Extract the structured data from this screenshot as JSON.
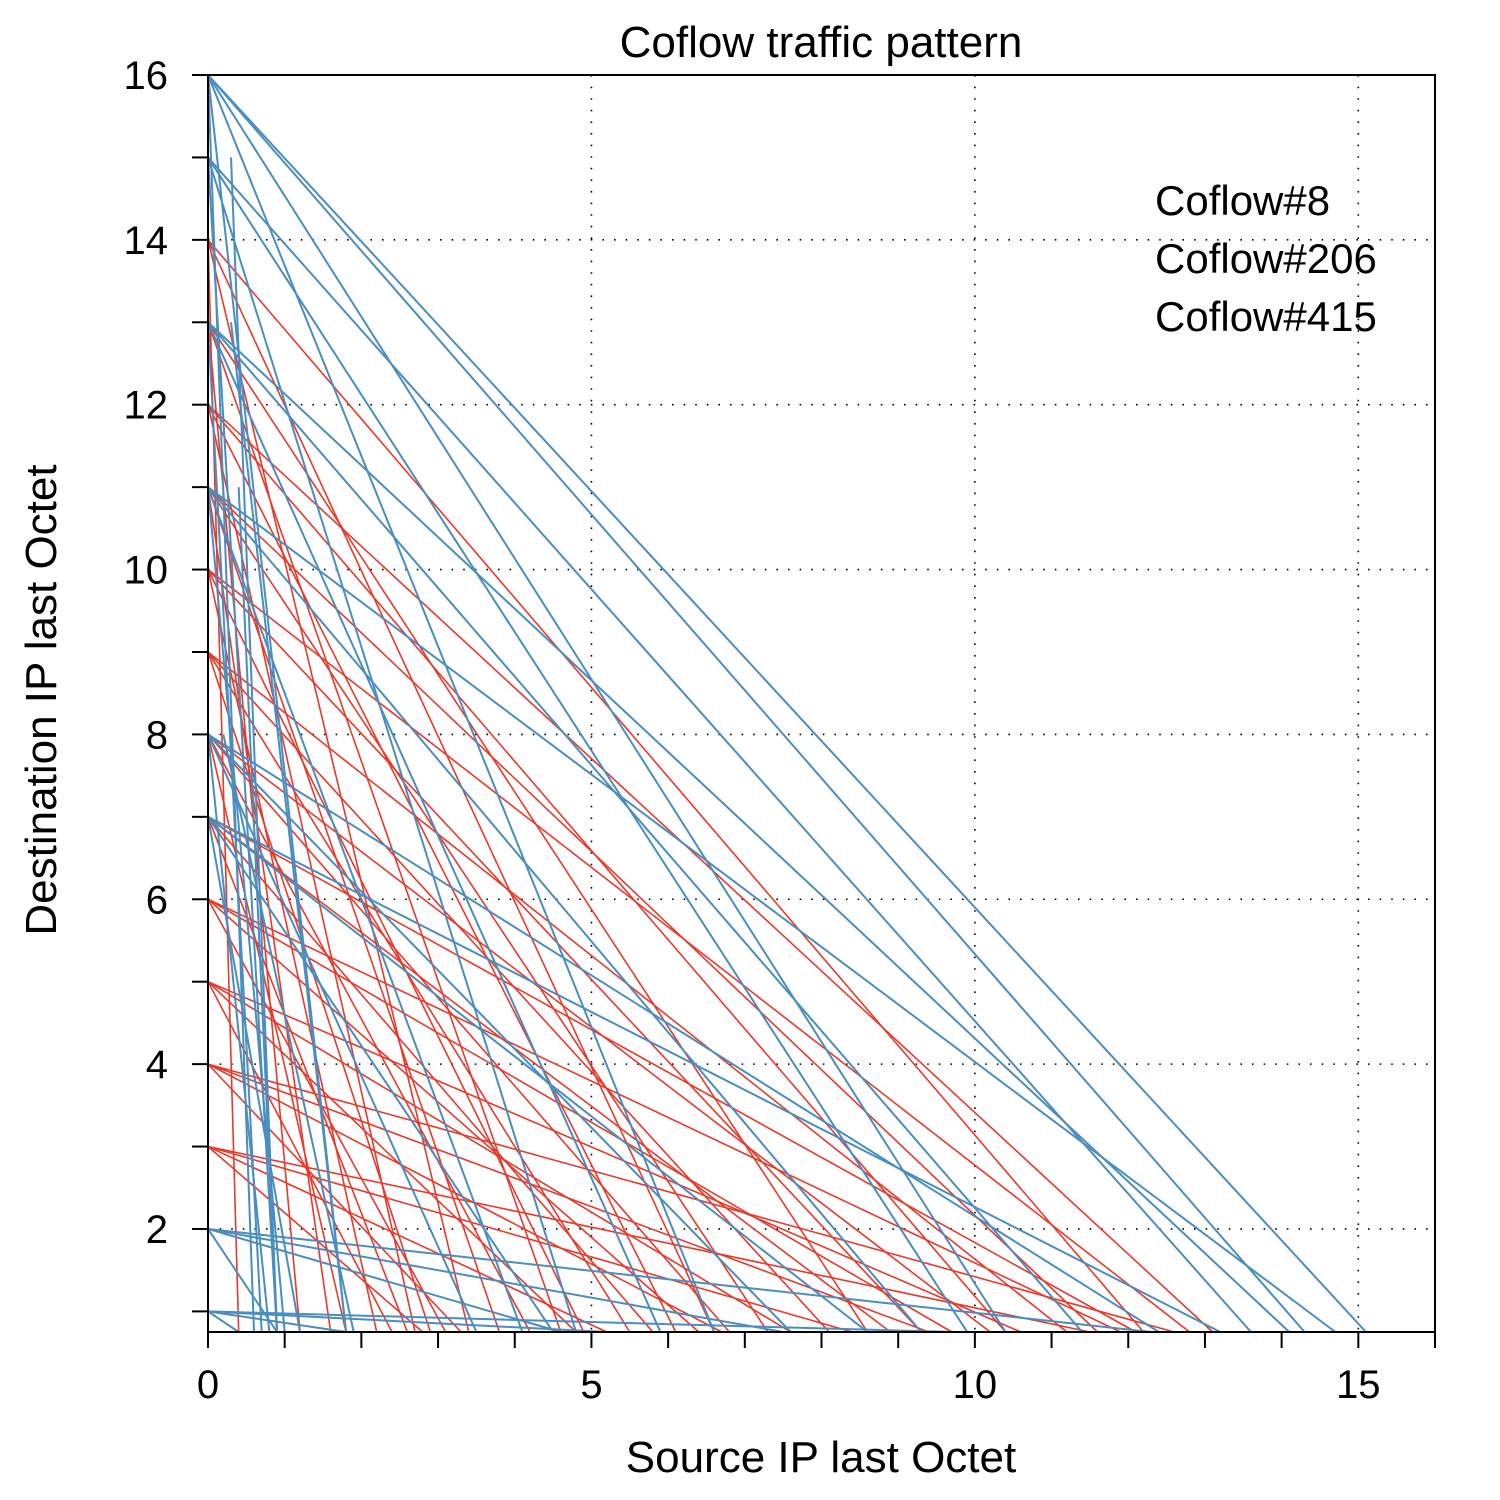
{
  "chart_data": {
    "type": "line",
    "title": "Coflow traffic pattern",
    "xlabel": "Source IP last Octet",
    "ylabel": "Destination IP last Octet",
    "xlim": [
      0,
      16
    ],
    "ylim": [
      0.75,
      16
    ],
    "x_ticks": [
      0,
      5,
      10,
      15
    ],
    "y_ticks": [
      2,
      4,
      6,
      8,
      10,
      12,
      14,
      16
    ],
    "grid": true,
    "legend_position": "top-right",
    "series": [
      {
        "name": "Coflow#8",
        "color": "#000000",
        "segments": []
      },
      {
        "name": "Coflow#206",
        "color": "#e8392b",
        "segments": [
          [
            [
              0,
              14
            ],
            [
              0.4,
              0.75
            ]
          ],
          [
            [
              0,
              14
            ],
            [
              3.4,
              0.75
            ]
          ],
          [
            [
              0,
              14
            ],
            [
              6.6,
              0.75
            ]
          ],
          [
            [
              0,
              14
            ],
            [
              12.2,
              0.75
            ]
          ],
          [
            [
              0,
              13
            ],
            [
              1.2,
              0.75
            ]
          ],
          [
            [
              0,
              13
            ],
            [
              4.6,
              0.75
            ]
          ],
          [
            [
              0,
              13
            ],
            [
              8.6,
              0.75
            ]
          ],
          [
            [
              0,
              12
            ],
            [
              2.7,
              0.75
            ]
          ],
          [
            [
              0,
              12
            ],
            [
              6.1,
              0.75
            ]
          ],
          [
            [
              0,
              12
            ],
            [
              10.4,
              0.75
            ]
          ],
          [
            [
              0,
              12
            ],
            [
              13.1,
              0.75
            ]
          ],
          [
            [
              0,
              11
            ],
            [
              1.6,
              0.75
            ]
          ],
          [
            [
              0,
              11
            ],
            [
              3.8,
              0.75
            ]
          ],
          [
            [
              0,
              11
            ],
            [
              7.3,
              0.75
            ]
          ],
          [
            [
              0,
              11
            ],
            [
              11.6,
              0.75
            ]
          ],
          [
            [
              0,
              10
            ],
            [
              2.2,
              0.75
            ]
          ],
          [
            [
              0,
              10
            ],
            [
              4.9,
              0.75
            ]
          ],
          [
            [
              0,
              10
            ],
            [
              9.3,
              0.75
            ]
          ],
          [
            [
              0,
              10
            ],
            [
              12.8,
              0.75
            ]
          ],
          [
            [
              0,
              9
            ],
            [
              2.9,
              0.75
            ]
          ],
          [
            [
              0,
              9
            ],
            [
              5.5,
              0.75
            ]
          ],
          [
            [
              0,
              9
            ],
            [
              8.1,
              0.75
            ]
          ],
          [
            [
              0,
              9
            ],
            [
              11.2,
              0.75
            ]
          ],
          [
            [
              0,
              8
            ],
            [
              1.8,
              0.75
            ]
          ],
          [
            [
              0,
              8
            ],
            [
              4.2,
              0.75
            ]
          ],
          [
            [
              0,
              8
            ],
            [
              6.8,
              0.75
            ]
          ],
          [
            [
              0,
              8
            ],
            [
              10.2,
              0.75
            ]
          ],
          [
            [
              0,
              7
            ],
            [
              2.6,
              0.75
            ]
          ],
          [
            [
              0,
              7
            ],
            [
              5.8,
              0.75
            ]
          ],
          [
            [
              0,
              7
            ],
            [
              8.9,
              0.75
            ]
          ],
          [
            [
              0,
              7
            ],
            [
              12.1,
              0.75
            ]
          ],
          [
            [
              0,
              6
            ],
            [
              3.1,
              0.75
            ]
          ],
          [
            [
              0,
              6
            ],
            [
              6.4,
              0.75
            ]
          ],
          [
            [
              0,
              6
            ],
            [
              9.7,
              0.75
            ]
          ],
          [
            [
              0,
              6
            ],
            [
              11.9,
              0.75
            ]
          ],
          [
            [
              0,
              5
            ],
            [
              2.4,
              0.75
            ]
          ],
          [
            [
              0,
              5
            ],
            [
              4.8,
              0.75
            ]
          ],
          [
            [
              0,
              5
            ],
            [
              7.6,
              0.75
            ]
          ],
          [
            [
              0,
              5
            ],
            [
              10.6,
              0.75
            ]
          ],
          [
            [
              0,
              4
            ],
            [
              3.3,
              0.75
            ]
          ],
          [
            [
              0,
              4
            ],
            [
              6.7,
              0.75
            ]
          ],
          [
            [
              0,
              4
            ],
            [
              9.4,
              0.75
            ]
          ],
          [
            [
              0,
              4
            ],
            [
              12.6,
              0.75
            ]
          ],
          [
            [
              0,
              3
            ],
            [
              2.8,
              0.75
            ]
          ],
          [
            [
              0,
              3
            ],
            [
              5.2,
              0.75
            ]
          ],
          [
            [
              0,
              3
            ],
            [
              8.4,
              0.75
            ]
          ],
          [
            [
              0,
              3
            ],
            [
              11.5,
              0.75
            ]
          ]
        ]
      },
      {
        "name": "Coflow#415",
        "color": "#4a8dbf",
        "segments": [
          [
            [
              0,
              16
            ],
            [
              0.6,
              0.75
            ]
          ],
          [
            [
              0,
              16
            ],
            [
              1.8,
              0.75
            ]
          ],
          [
            [
              0,
              16
            ],
            [
              6.6,
              0.75
            ]
          ],
          [
            [
              0,
              16
            ],
            [
              10.4,
              0.75
            ]
          ],
          [
            [
              0,
              16
            ],
            [
              14.3,
              0.75
            ]
          ],
          [
            [
              0,
              16
            ],
            [
              15.1,
              0.75
            ]
          ],
          [
            [
              0,
              15
            ],
            [
              0.9,
              0.75
            ]
          ],
          [
            [
              0,
              15
            ],
            [
              4.8,
              0.75
            ]
          ],
          [
            [
              0,
              15
            ],
            [
              9.9,
              0.75
            ]
          ],
          [
            [
              0,
              15
            ],
            [
              13.6,
              0.75
            ]
          ],
          [
            [
              0,
              13
            ],
            [
              0.7,
              0.75
            ]
          ],
          [
            [
              0,
              13
            ],
            [
              5.9,
              0.75
            ]
          ],
          [
            [
              0,
              13
            ],
            [
              11.4,
              0.75
            ]
          ],
          [
            [
              0,
              13
            ],
            [
              14.1,
              0.75
            ]
          ],
          [
            [
              0,
              11
            ],
            [
              1.0,
              0.75
            ]
          ],
          [
            [
              0,
              11
            ],
            [
              4.1,
              0.75
            ]
          ],
          [
            [
              0,
              11
            ],
            [
              9.3,
              0.75
            ]
          ],
          [
            [
              0,
              11
            ],
            [
              14.7,
              0.75
            ]
          ],
          [
            [
              0,
              8
            ],
            [
              0.8,
              0.75
            ]
          ],
          [
            [
              0,
              8
            ],
            [
              3.5,
              0.75
            ]
          ],
          [
            [
              0,
              8
            ],
            [
              7.6,
              0.75
            ]
          ],
          [
            [
              0,
              8
            ],
            [
              12.4,
              0.75
            ]
          ],
          [
            [
              0,
              7
            ],
            [
              1.2,
              0.75
            ]
          ],
          [
            [
              0,
              7
            ],
            [
              4.5,
              0.75
            ]
          ],
          [
            [
              0,
              7
            ],
            [
              8.6,
              0.75
            ]
          ],
          [
            [
              0,
              7
            ],
            [
              13.2,
              0.75
            ]
          ],
          [
            [
              0,
              2
            ],
            [
              0.9,
              0.75
            ]
          ],
          [
            [
              0,
              2
            ],
            [
              4.6,
              0.75
            ]
          ],
          [
            [
              0,
              2
            ],
            [
              7.5,
              0.75
            ]
          ],
          [
            [
              0,
              2
            ],
            [
              12.3,
              0.75
            ]
          ],
          [
            [
              0,
              1
            ],
            [
              0.4,
              0.75
            ]
          ],
          [
            [
              0,
              1
            ],
            [
              1.8,
              0.75
            ]
          ],
          [
            [
              0,
              1
            ],
            [
              5.2,
              0.75
            ]
          ],
          [
            [
              0,
              1
            ],
            [
              9.7,
              0.75
            ]
          ],
          [
            [
              0.3,
              15
            ],
            [
              0.9,
              0.75
            ]
          ],
          [
            [
              0.3,
              13
            ],
            [
              1.8,
              0.75
            ]
          ],
          [
            [
              0.4,
              11
            ],
            [
              0.9,
              0.75
            ]
          ],
          [
            [
              0.2,
              8
            ],
            [
              1.9,
              0.75
            ]
          ]
        ]
      }
    ]
  }
}
